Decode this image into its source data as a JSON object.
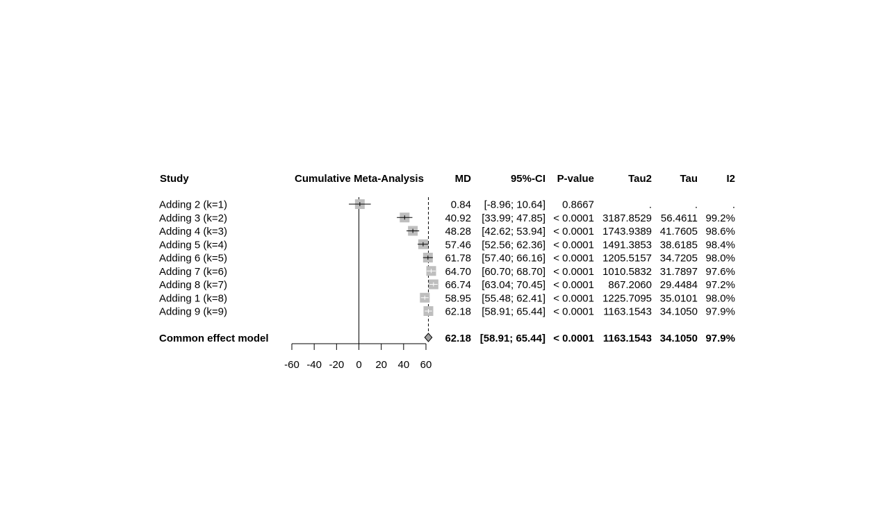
{
  "chart_data": {
    "type": "forest",
    "headers": {
      "study": "Study",
      "plot": "Cumulative Meta-Analysis",
      "md": "MD",
      "ci": "95%-CI",
      "pval": "P-value",
      "tau2": "Tau2",
      "tau": "Tau",
      "i2": "I2"
    },
    "x_ticks": [
      -60,
      -40,
      -20,
      0,
      20,
      40,
      60
    ],
    "x_range": [
      -60,
      60
    ],
    "reference_line": 0,
    "summary_line": 62.18,
    "studies": [
      {
        "label": "Adding 2 (k=1)",
        "md": 0.84,
        "lower": -8.96,
        "upper": 10.64,
        "md_text": "0.84",
        "ci_text": "[-8.96; 10.64]",
        "p_text": "0.8667",
        "tau2_text": ".",
        "tau_text": ".",
        "i2_text": "."
      },
      {
        "label": "Adding 3 (k=2)",
        "md": 40.92,
        "lower": 33.99,
        "upper": 47.85,
        "md_text": "40.92",
        "ci_text": "[33.99; 47.85]",
        "p_text": "< 0.0001",
        "tau2_text": "3187.8529",
        "tau_text": "56.4611",
        "i2_text": "99.2%"
      },
      {
        "label": "Adding 4 (k=3)",
        "md": 48.28,
        "lower": 42.62,
        "upper": 53.94,
        "md_text": "48.28",
        "ci_text": "[42.62; 53.94]",
        "p_text": "< 0.0001",
        "tau2_text": "1743.9389",
        "tau_text": "41.7605",
        "i2_text": "98.6%"
      },
      {
        "label": "Adding 5 (k=4)",
        "md": 57.46,
        "lower": 52.56,
        "upper": 62.36,
        "md_text": "57.46",
        "ci_text": "[52.56; 62.36]",
        "p_text": "< 0.0001",
        "tau2_text": "1491.3853",
        "tau_text": "38.6185",
        "i2_text": "98.4%"
      },
      {
        "label": "Adding 6 (k=5)",
        "md": 61.78,
        "lower": 57.4,
        "upper": 66.16,
        "md_text": "61.78",
        "ci_text": "[57.40; 66.16]",
        "p_text": "< 0.0001",
        "tau2_text": "1205.5157",
        "tau_text": "34.7205",
        "i2_text": "98.0%"
      },
      {
        "label": "Adding 7 (k=6)",
        "md": 64.7,
        "lower": 60.7,
        "upper": 68.7,
        "md_text": "64.70",
        "ci_text": "[60.70; 68.70]",
        "p_text": "< 0.0001",
        "tau2_text": "1010.5832",
        "tau_text": "31.7897",
        "i2_text": "97.6%"
      },
      {
        "label": "Adding 8 (k=7)",
        "md": 66.74,
        "lower": 63.04,
        "upper": 70.45,
        "md_text": "66.74",
        "ci_text": "[63.04; 70.45]",
        "p_text": "< 0.0001",
        "tau2_text": "867.2060",
        "tau_text": "29.4484",
        "i2_text": "97.2%"
      },
      {
        "label": "Adding 1 (k=8)",
        "md": 58.95,
        "lower": 55.48,
        "upper": 62.41,
        "md_text": "58.95",
        "ci_text": "[55.48; 62.41]",
        "p_text": "< 0.0001",
        "tau2_text": "1225.7095",
        "tau_text": "35.0101",
        "i2_text": "98.0%"
      },
      {
        "label": "Adding 9 (k=9)",
        "md": 62.18,
        "lower": 58.91,
        "upper": 65.44,
        "md_text": "62.18",
        "ci_text": "[58.91; 65.44]",
        "p_text": "< 0.0001",
        "tau2_text": "1163.1543",
        "tau_text": "34.1050",
        "i2_text": "97.9%"
      }
    ],
    "overall": {
      "label": "Common effect model",
      "md": 62.18,
      "lower": 58.91,
      "upper": 65.44,
      "md_text": "62.18",
      "ci_text": "[58.91; 65.44]",
      "p_text": "< 0.0001",
      "tau2_text": "1163.1543",
      "tau_text": "34.1050",
      "i2_text": "97.9%"
    },
    "colors": {
      "square": "#bebebe",
      "diamond": "#a0a0a0",
      "line": "#000000"
    }
  }
}
